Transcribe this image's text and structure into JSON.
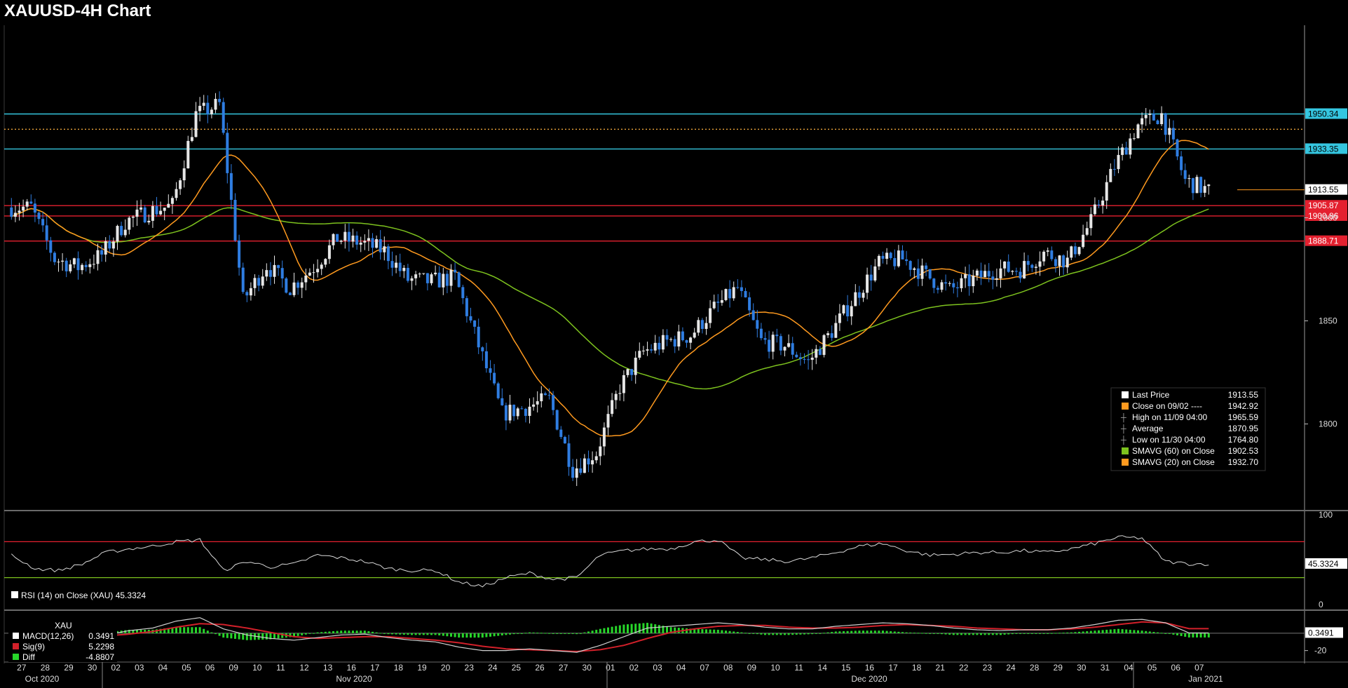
{
  "title": "XAUUSD-4H Chart",
  "colors": {
    "background": "#000000",
    "up_candle": "#e6e6e6",
    "down_candle": "#2f7de1",
    "sma20": "#ff9a1f",
    "sma60": "#7dc21e",
    "support_resistance_cyan": "#35c6e0",
    "support_resistance_red": "#e4202f",
    "dotted_orange": "#e8a23a",
    "rsi_line": "#d8d8d8",
    "macd_line": "#cfcfcf",
    "signal_line": "#d2202a",
    "diff_bars": "#27d52a"
  },
  "chart_data": [
    {
      "type": "candlestick",
      "title": "XAUUSD-4H Chart",
      "timeframe": "4H",
      "x_axis": {
        "day_labels": [
          "27",
          "28",
          "29",
          "30",
          "02",
          "03",
          "04",
          "05",
          "06",
          "09",
          "10",
          "11",
          "12",
          "13",
          "16",
          "17",
          "18",
          "19",
          "20",
          "23",
          "24",
          "25",
          "26",
          "27",
          "30",
          "01",
          "02",
          "03",
          "04",
          "07",
          "08",
          "09",
          "10",
          "11",
          "14",
          "15",
          "16",
          "17",
          "18",
          "21",
          "22",
          "23",
          "24",
          "28",
          "29",
          "30",
          "31",
          "04",
          "05",
          "06",
          "07"
        ],
        "month_labels": [
          "Oct 2020",
          "Nov 2020",
          "Dec 2020",
          "Jan 2021"
        ]
      },
      "y_axis": {
        "ticks": [
          1800,
          1850,
          1900
        ],
        "range": [
          1758,
          1992
        ],
        "position": "right"
      },
      "series": [
        {
          "name": "XAUUSD",
          "kind": "close",
          "day_closes": [
            1905,
            1880,
            1876,
            1882,
            1898,
            1903,
            1906,
            1950,
            1955,
            1860,
            1877,
            1866,
            1876,
            1890,
            1888,
            1884,
            1870,
            1869,
            1871,
            1838,
            1805,
            1808,
            1812,
            1778,
            1786,
            1818,
            1835,
            1840,
            1843,
            1856,
            1866,
            1840,
            1838,
            1830,
            1845,
            1862,
            1878,
            1880,
            1872,
            1865,
            1870,
            1875,
            1875,
            1883,
            1879,
            1898,
            1925,
            1945,
            1950,
            1918,
            1913
          ]
        },
        {
          "name": "SMAVG (60) on Close",
          "kind": "sma",
          "period": 60
        },
        {
          "name": "SMAVG (20) on Close",
          "kind": "sma",
          "period": 20
        }
      ],
      "horizontal_levels": [
        {
          "value": 1950.34,
          "label": "1950.34",
          "color": "cyan"
        },
        {
          "value": 1942.92,
          "label": "",
          "color": "orange-dotted"
        },
        {
          "value": 1933.35,
          "label": "1933.35",
          "color": "cyan"
        },
        {
          "value": 1913.55,
          "label": "1913.55",
          "color": "white-tag"
        },
        {
          "value": 1905.87,
          "label": "1905.87",
          "color": "red"
        },
        {
          "value": 1900.86,
          "label": "1900.86",
          "color": "red"
        },
        {
          "value": 1888.71,
          "label": "1888.71",
          "color": "red"
        }
      ],
      "legend": {
        "position": "bottom-right",
        "entries": [
          {
            "label": "Last Price",
            "value": "1913.55",
            "marker": "white"
          },
          {
            "label": "Close on 09/02 ----",
            "value": "1942.92",
            "marker": "orange"
          },
          {
            "label": "High on 11/09 04:00",
            "value": "1965.59",
            "marker": "high"
          },
          {
            "label": "Average",
            "value": "1870.95",
            "marker": "avg"
          },
          {
            "label": "Low on 11/30 04:00",
            "value": "1764.80",
            "marker": "low"
          },
          {
            "label": "SMAVG (60)  on Close",
            "value": "1902.53",
            "marker": "green"
          },
          {
            "label": "SMAVG (20)  on Close",
            "value": "1932.70",
            "marker": "orange"
          }
        ]
      }
    },
    {
      "type": "line",
      "name": "RSI (14)  on Close (XAU) 45.3324",
      "last_value": "45.3324",
      "y_axis": {
        "ticks": [
          0,
          100
        ],
        "range": [
          0,
          100
        ]
      },
      "levels": [
        70,
        30
      ],
      "day_values": [
        55,
        40,
        38,
        45,
        58,
        62,
        65,
        70,
        72,
        38,
        48,
        42,
        45,
        55,
        52,
        48,
        40,
        38,
        38,
        25,
        20,
        30,
        35,
        28,
        30,
        55,
        60,
        62,
        62,
        70,
        72,
        52,
        50,
        48,
        52,
        58,
        65,
        68,
        60,
        55,
        56,
        58,
        58,
        60,
        58,
        62,
        68,
        75,
        74,
        48,
        45.33
      ]
    },
    {
      "type": "macd",
      "series_label": "XAU",
      "legend": {
        "entries": [
          {
            "label": "MACD(12,26)",
            "value": "0.3491",
            "marker": "white"
          },
          {
            "label": "Sig(9)",
            "value": "5.2298",
            "marker": "red"
          },
          {
            "label": "Diff",
            "value": "-4.8807",
            "marker": "green"
          }
        ]
      },
      "last_value": "0.3491",
      "y_axis": {
        "ticks": [
          -20
        ],
        "range": [
          -30,
          25
        ]
      },
      "day_macd": [
        3,
        -2,
        -5,
        -6,
        -2,
        3,
        6,
        14,
        18,
        5,
        -2,
        -6,
        -8,
        -5,
        -2,
        -1,
        -5,
        -8,
        -10,
        -16,
        -20,
        -20,
        -18,
        -20,
        -22,
        -14,
        -4,
        6,
        8,
        10,
        12,
        10,
        7,
        5,
        5,
        8,
        10,
        12,
        11,
        9,
        6,
        4,
        3,
        4,
        4,
        6,
        10,
        15,
        16,
        12,
        0.35
      ],
      "day_signal": [
        4,
        2,
        -1,
        -3,
        -3,
        -1,
        2,
        7,
        11,
        10,
        6,
        1,
        -4,
        -6,
        -5,
        -4,
        -4,
        -6,
        -8,
        -11,
        -15,
        -18,
        -19,
        -20,
        -21,
        -19,
        -14,
        -6,
        1,
        5,
        8,
        9,
        9,
        7,
        6,
        6,
        7,
        9,
        10,
        9,
        8,
        6,
        5,
        4,
        4,
        5,
        7,
        10,
        13,
        12,
        5.23
      ]
    }
  ]
}
